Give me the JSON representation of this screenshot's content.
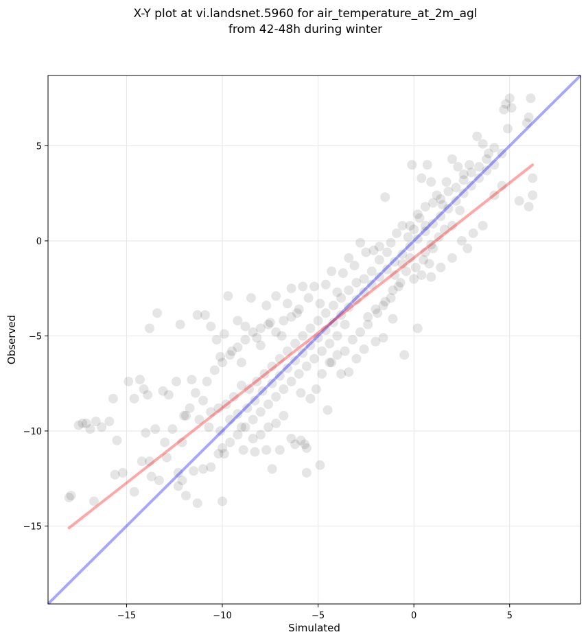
{
  "chart_data": {
    "type": "scatter",
    "title": "X-Y plot at vi.landsnet.5960 for air_temperature_at_2m_agl",
    "subtitle": "from 42-48h during winter",
    "xlabel": "Simulated",
    "ylabel": "Observed",
    "xlim": [
      -19.1,
      8.7
    ],
    "ylim": [
      -19.1,
      8.7
    ],
    "x_ticks": [
      -15,
      -10,
      -5,
      0,
      5
    ],
    "y_ticks": [
      -15,
      -10,
      -5,
      0,
      5
    ],
    "x_tick_labels": [
      "−15",
      "−10",
      "−5",
      "0",
      "5"
    ],
    "y_tick_labels": [
      "−15",
      "−10",
      "−5",
      "0",
      "5"
    ],
    "grid": true,
    "colors": {
      "points": "#000000",
      "identity_line": "#0000ff",
      "fit_line": "#ff0000"
    },
    "identity_line": {
      "x": [
        -19.1,
        8.7
      ],
      "y": [
        -19.1,
        8.7
      ]
    },
    "fit_line": {
      "x": [
        -18.0,
        6.2
      ],
      "y": [
        -15.1,
        4.0
      ]
    },
    "series": [
      {
        "values": [
          [
            -18.0,
            -13.5
          ],
          [
            -17.9,
            -13.4
          ],
          [
            -16.7,
            -13.7
          ],
          [
            -17.5,
            -9.7
          ],
          [
            -17.3,
            -9.6
          ],
          [
            -17.1,
            -9.6
          ],
          [
            -16.9,
            -9.9
          ],
          [
            -16.6,
            -9.5
          ],
          [
            -16.3,
            -9.8
          ],
          [
            -15.9,
            -9.5
          ],
          [
            -15.7,
            -8.3
          ],
          [
            -15.5,
            -10.5
          ],
          [
            -15.6,
            -12.3
          ],
          [
            -15.2,
            -12.2
          ],
          [
            -14.9,
            -7.4
          ],
          [
            -14.6,
            -8.3
          ],
          [
            -14.3,
            -7.3
          ],
          [
            -14.1,
            -7.8
          ],
          [
            -13.9,
            -8.1
          ],
          [
            -14.6,
            -13.2
          ],
          [
            -14.2,
            -11.6
          ],
          [
            -13.7,
            -12.4
          ],
          [
            -13.3,
            -12.6
          ],
          [
            -13.5,
            -9.9
          ],
          [
            -13.4,
            -3.8
          ],
          [
            -13.8,
            -4.6
          ],
          [
            -13.1,
            -7.9
          ],
          [
            -12.8,
            -8.1
          ],
          [
            -12.4,
            -7.4
          ],
          [
            -12.2,
            -4.4
          ],
          [
            -11.9,
            -9.2
          ],
          [
            -11.7,
            -8.8
          ],
          [
            -11.3,
            -3.9
          ],
          [
            -10.9,
            -3.9
          ],
          [
            -11.6,
            -7.3
          ],
          [
            -12.1,
            -10.6
          ],
          [
            -12.3,
            -12.2
          ],
          [
            -12.1,
            -12.6
          ],
          [
            -11.9,
            -13.4
          ],
          [
            -11.3,
            -13.8
          ],
          [
            -10.0,
            -13.7
          ],
          [
            -10.6,
            -4.5
          ],
          [
            -10.3,
            -5.2
          ],
          [
            -10.1,
            -6.1
          ],
          [
            -9.9,
            -4.9
          ],
          [
            -9.7,
            -2.9
          ],
          [
            -9.5,
            -5.8
          ],
          [
            -9.2,
            -4.2
          ],
          [
            -9.0,
            -6.4
          ],
          [
            -8.8,
            -4.5
          ],
          [
            -8.5,
            -3.0
          ],
          [
            -8.2,
            -5.1
          ],
          [
            -8.0,
            -5.5
          ],
          [
            -7.7,
            -3.4
          ],
          [
            -7.5,
            -4.3
          ],
          [
            -7.2,
            -2.9
          ],
          [
            -6.9,
            -5.0
          ],
          [
            -6.6,
            -3.3
          ],
          [
            -6.4,
            -2.5
          ],
          [
            -6.1,
            -3.8
          ],
          [
            -5.8,
            -2.4
          ],
          [
            -5.5,
            -3.0
          ],
          [
            -5.2,
            -2.4
          ],
          [
            -4.9,
            -3.3
          ],
          [
            -4.6,
            -2.3
          ],
          [
            -4.3,
            -1.6
          ],
          [
            -4.0,
            -2.7
          ],
          [
            -3.7,
            -1.7
          ],
          [
            -3.4,
            -0.9
          ],
          [
            -3.1,
            -1.3
          ],
          [
            -2.8,
            -0.1
          ],
          [
            -2.5,
            -0.6
          ],
          [
            -2.1,
            -0.5
          ],
          [
            -1.8,
            -0.3
          ],
          [
            -1.5,
            2.3
          ],
          [
            -1.2,
            -0.1
          ],
          [
            -0.9,
            0.4
          ],
          [
            -0.6,
            0.8
          ],
          [
            -0.3,
            0.2
          ],
          [
            0.0,
            0.6
          ],
          [
            0.3,
            1.2
          ],
          [
            0.6,
            0.8
          ],
          [
            -0.1,
            4.0
          ],
          [
            0.4,
            3.3
          ],
          [
            0.7,
            4.0
          ],
          [
            0.9,
            3.1
          ],
          [
            1.2,
            2.4
          ],
          [
            1.5,
            1.9
          ],
          [
            1.7,
            3.1
          ],
          [
            2.0,
            4.3
          ],
          [
            2.3,
            3.9
          ],
          [
            2.6,
            3.5
          ],
          [
            2.9,
            4.0
          ],
          [
            3.3,
            5.5
          ],
          [
            3.6,
            5.1
          ],
          [
            3.9,
            4.6
          ],
          [
            4.2,
            4.9
          ],
          [
            4.6,
            4.6
          ],
          [
            4.9,
            5.9
          ],
          [
            4.7,
            6.9
          ],
          [
            4.8,
            7.2
          ],
          [
            5.1,
            7.0
          ],
          [
            5.0,
            7.5
          ],
          [
            5.9,
            6.2
          ],
          [
            6.0,
            6.5
          ],
          [
            6.1,
            7.5
          ],
          [
            6.2,
            3.3
          ],
          [
            6.2,
            2.4
          ],
          [
            6.0,
            1.8
          ],
          [
            5.5,
            2.1
          ],
          [
            4.6,
            2.9
          ],
          [
            4.2,
            2.4
          ],
          [
            3.6,
            0.8
          ],
          [
            3.1,
            0.4
          ],
          [
            2.5,
            0.0
          ],
          [
            2.8,
            -0.4
          ],
          [
            2.0,
            -0.9
          ],
          [
            1.4,
            -1.4
          ],
          [
            0.9,
            -1.9
          ],
          [
            0.2,
            -4.6
          ],
          [
            -0.5,
            -6.0
          ],
          [
            -1.1,
            -4.1
          ],
          [
            -1.6,
            -5.1
          ],
          [
            -2.0,
            -5.3
          ],
          [
            -2.6,
            -5.7
          ],
          [
            -3.0,
            -6.2
          ],
          [
            -3.4,
            -6.9
          ],
          [
            -3.8,
            -7.0
          ],
          [
            -4.3,
            -6.4
          ],
          [
            -4.8,
            -7.0
          ],
          [
            -5.1,
            -7.8
          ],
          [
            -5.4,
            -8.3
          ],
          [
            -4.5,
            -8.9
          ],
          [
            -5.9,
            -8.0
          ],
          [
            -5.6,
            -10.9
          ],
          [
            -5.7,
            -10.7
          ],
          [
            -5.9,
            -10.5
          ],
          [
            -6.2,
            -10.7
          ],
          [
            -5.6,
            -12.2
          ],
          [
            -4.9,
            -11.8
          ],
          [
            -6.4,
            -10.4
          ],
          [
            -7.0,
            -11.0
          ],
          [
            -7.7,
            -11.0
          ],
          [
            -8.3,
            -11.1
          ],
          [
            -8.9,
            -11.0
          ],
          [
            -7.4,
            -12.0
          ],
          [
            -9.9,
            -11.2
          ],
          [
            -10.2,
            -11.2
          ],
          [
            -10.6,
            -11.9
          ],
          [
            -11.0,
            -12.0
          ],
          [
            -11.5,
            -12.1
          ],
          [
            -12.3,
            -12.9
          ],
          [
            -12.9,
            -11.4
          ],
          [
            -13.8,
            -11.6
          ],
          [
            -14.0,
            -10.1
          ],
          [
            -13.0,
            -10.6
          ],
          [
            -12.6,
            -9.9
          ],
          [
            -12.0,
            -9.2
          ],
          [
            -11.2,
            -9.4
          ],
          [
            -10.7,
            -9.8
          ],
          [
            -10.1,
            -10.0
          ],
          [
            -9.6,
            -9.4
          ],
          [
            -9.2,
            -9.1
          ],
          [
            -8.7,
            -8.8
          ],
          [
            -8.3,
            -8.4
          ],
          [
            -7.9,
            -7.9
          ],
          [
            -7.4,
            -7.5
          ],
          [
            -7.0,
            -7.1
          ],
          [
            -6.6,
            -6.7
          ],
          [
            -6.2,
            -6.3
          ],
          [
            -5.8,
            -5.9
          ],
          [
            -5.4,
            -5.5
          ],
          [
            -5.0,
            -5.1
          ],
          [
            -4.6,
            -4.7
          ],
          [
            -4.2,
            -4.3
          ],
          [
            -3.8,
            -3.9
          ],
          [
            -3.4,
            -3.5
          ],
          [
            -3.0,
            -3.1
          ],
          [
            -2.6,
            -2.7
          ],
          [
            -2.2,
            -2.3
          ],
          [
            -1.8,
            -1.9
          ],
          [
            -1.4,
            -1.5
          ],
          [
            -1.0,
            -1.1
          ],
          [
            -0.6,
            -0.7
          ],
          [
            -0.2,
            -0.3
          ],
          [
            0.2,
            0.1
          ],
          [
            0.6,
            0.5
          ],
          [
            1.0,
            0.9
          ],
          [
            1.4,
            1.3
          ],
          [
            1.8,
            1.7
          ],
          [
            2.2,
            2.1
          ],
          [
            2.6,
            2.5
          ],
          [
            3.0,
            2.9
          ],
          [
            3.4,
            3.3
          ],
          [
            3.8,
            3.7
          ],
          [
            -0.4,
            -1.6
          ],
          [
            0.0,
            -2.0
          ],
          [
            0.4,
            -1.8
          ],
          [
            0.8,
            -1.2
          ],
          [
            -0.8,
            -2.4
          ],
          [
            -1.2,
            -3.0
          ],
          [
            -1.6,
            -3.4
          ],
          [
            -2.0,
            -3.6
          ],
          [
            -2.4,
            -4.0
          ],
          [
            0.6,
            -0.6
          ],
          [
            1.0,
            -0.4
          ],
          [
            -0.2,
            -0.9
          ],
          [
            -0.6,
            -1.2
          ],
          [
            -1.0,
            -1.8
          ],
          [
            -3.6,
            -4.4
          ],
          [
            -4.0,
            -5.0
          ],
          [
            -4.4,
            -5.4
          ],
          [
            -4.8,
            -5.8
          ],
          [
            -5.2,
            -6.2
          ],
          [
            -5.6,
            -6.6
          ],
          [
            -6.0,
            -7.0
          ],
          [
            -6.4,
            -7.4
          ],
          [
            -6.8,
            -7.8
          ],
          [
            -7.2,
            -8.2
          ],
          [
            -7.6,
            -8.6
          ],
          [
            -8.0,
            -9.0
          ],
          [
            -8.4,
            -9.4
          ],
          [
            -8.8,
            -9.8
          ],
          [
            -9.2,
            -10.2
          ],
          [
            -9.6,
            -10.6
          ],
          [
            -10.0,
            -10.9
          ],
          [
            -8.6,
            -7.8
          ],
          [
            -8.2,
            -7.4
          ],
          [
            -7.8,
            -7.0
          ],
          [
            -7.4,
            -6.6
          ],
          [
            -7.0,
            -6.2
          ],
          [
            -6.6,
            -5.8
          ],
          [
            -6.2,
            -5.4
          ],
          [
            -5.8,
            -5.0
          ],
          [
            -5.4,
            -4.6
          ],
          [
            -5.0,
            -4.2
          ],
          [
            -4.6,
            -3.8
          ],
          [
            -4.2,
            -3.4
          ],
          [
            -3.8,
            -3.0
          ],
          [
            -3.4,
            -2.6
          ],
          [
            -9.0,
            -7.6
          ],
          [
            -9.4,
            -8.2
          ],
          [
            -9.8,
            -8.6
          ],
          [
            -10.2,
            -8.8
          ],
          [
            -10.6,
            -9.0
          ],
          [
            -11.0,
            -8.4
          ],
          [
            -11.4,
            -8.0
          ],
          [
            -10.8,
            -7.4
          ],
          [
            -10.4,
            -6.8
          ],
          [
            -10.0,
            -6.4
          ],
          [
            -9.6,
            -6.0
          ],
          [
            -9.2,
            -5.6
          ],
          [
            -8.8,
            -5.2
          ],
          [
            -8.4,
            -4.8
          ],
          [
            -8.0,
            -4.6
          ],
          [
            -7.6,
            -4.4
          ],
          [
            -7.2,
            -4.8
          ],
          [
            -6.8,
            -4.2
          ],
          [
            -6.4,
            -4.0
          ],
          [
            -6.0,
            -3.6
          ],
          [
            -2.2,
            -1.6
          ],
          [
            -1.8,
            -1.0
          ],
          [
            -1.4,
            -0.6
          ],
          [
            -2.6,
            -2.0
          ],
          [
            -3.0,
            -2.2
          ],
          [
            -0.2,
            0.8
          ],
          [
            0.2,
            1.4
          ],
          [
            0.6,
            1.8
          ],
          [
            1.0,
            2.0
          ],
          [
            1.4,
            2.2
          ],
          [
            1.8,
            2.6
          ],
          [
            2.2,
            2.8
          ],
          [
            2.6,
            3.2
          ],
          [
            3.0,
            3.6
          ],
          [
            3.4,
            3.9
          ],
          [
            3.8,
            4.3
          ],
          [
            4.2,
            4.0
          ],
          [
            1.6,
            0.6
          ],
          [
            2.0,
            0.8
          ],
          [
            2.4,
            1.6
          ],
          [
            -2.8,
            -4.8
          ],
          [
            -3.2,
            -5.2
          ],
          [
            -2.4,
            -4.4
          ],
          [
            -1.9,
            -3.8
          ],
          [
            -1.5,
            -3.2
          ],
          [
            -1.1,
            -2.6
          ],
          [
            -0.7,
            -2.2
          ],
          [
            0.1,
            -1.4
          ],
          [
            0.5,
            -1.0
          ],
          [
            0.9,
            -0.2
          ],
          [
            1.3,
            0.2
          ],
          [
            -3.6,
            -5.8
          ],
          [
            -4.0,
            -6.0
          ],
          [
            -4.4,
            -6.4
          ],
          [
            -6.8,
            -9.2
          ],
          [
            -7.2,
            -9.6
          ],
          [
            -7.6,
            -9.8
          ],
          [
            -8.0,
            -10.2
          ],
          [
            -8.4,
            -10.4
          ],
          [
            -9.0,
            -9.8
          ]
        ]
      }
    ]
  }
}
